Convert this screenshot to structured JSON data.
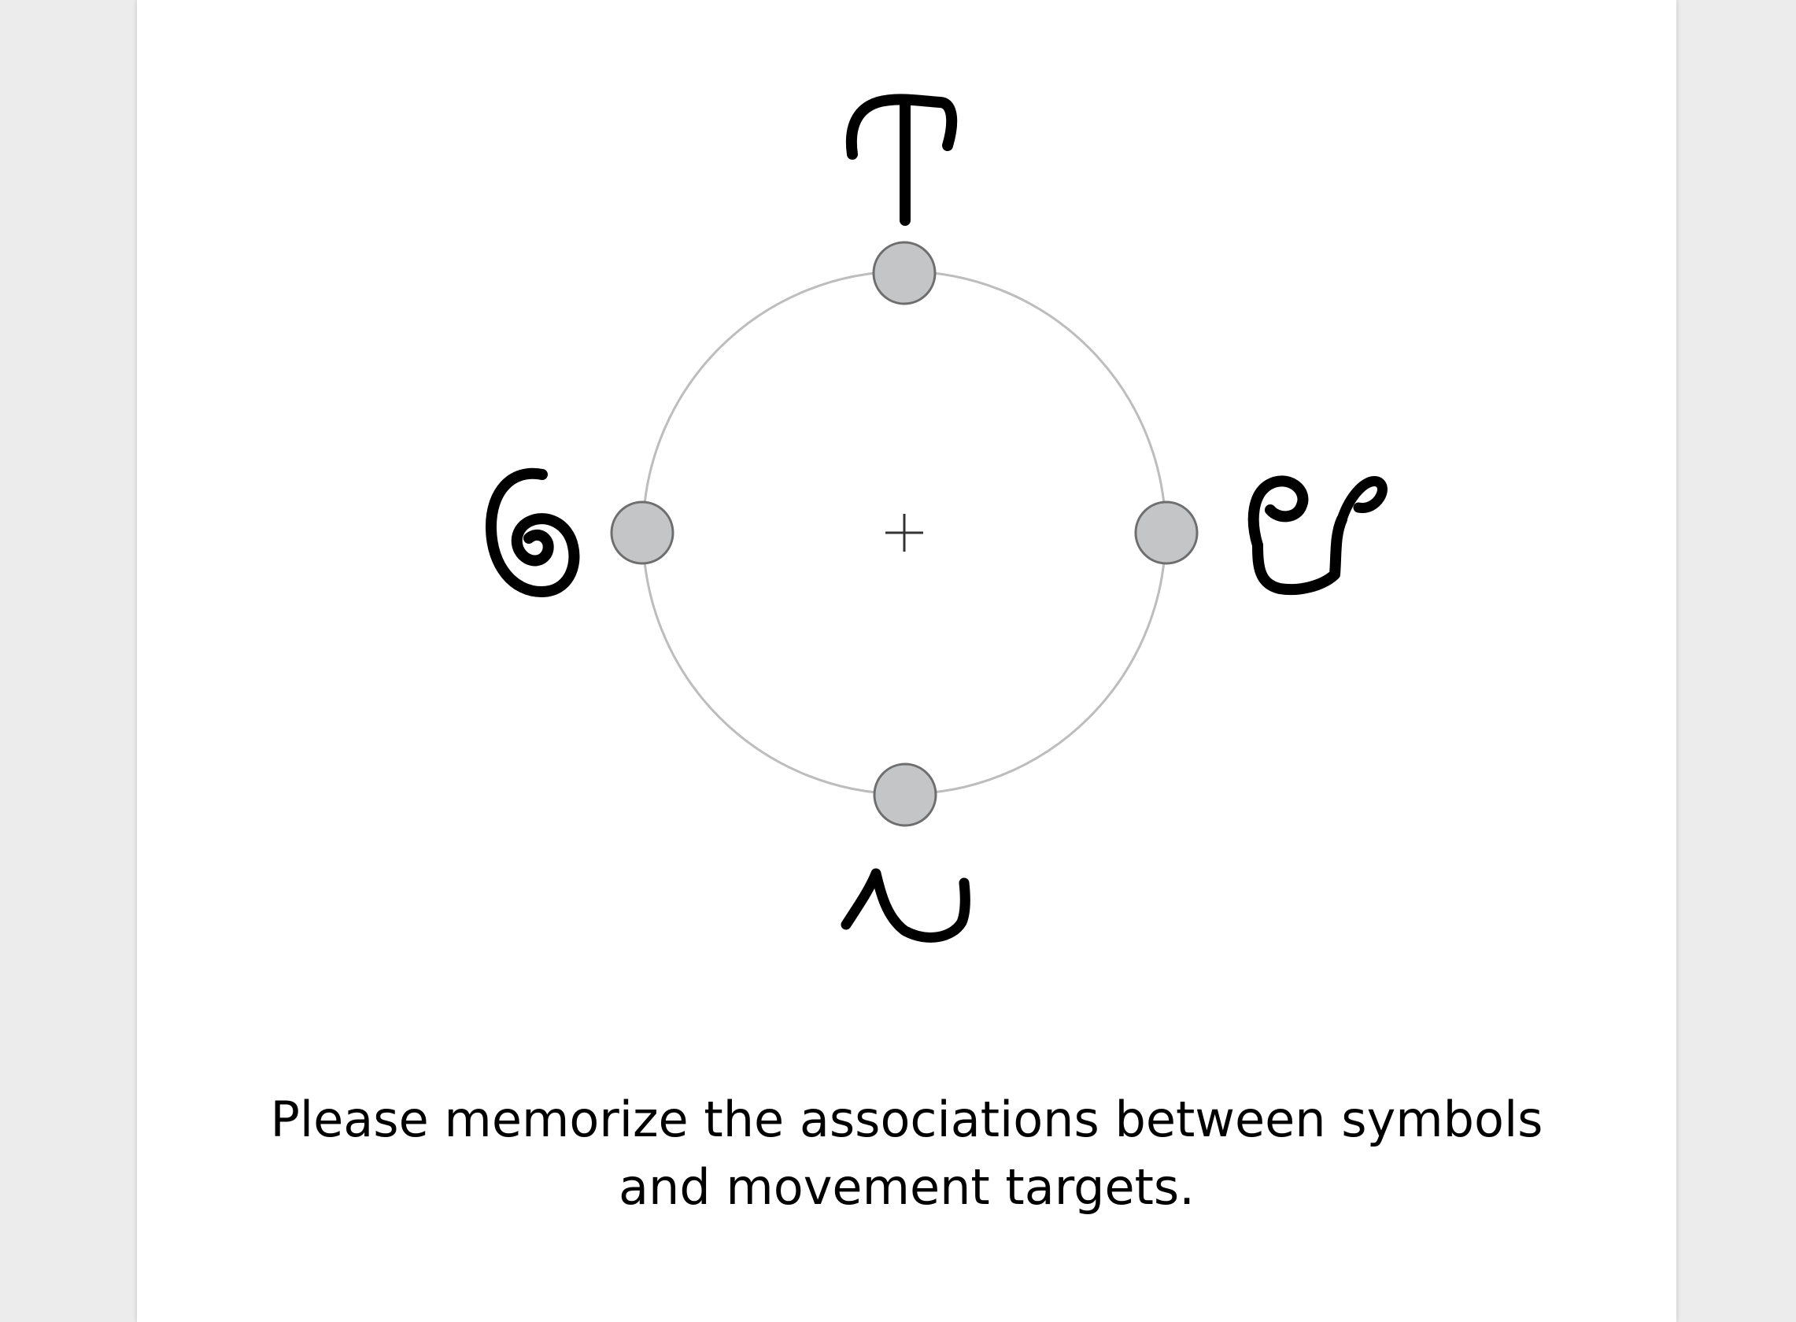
{
  "instruction": {
    "line1": "Please memorize the associations between symbols",
    "line2": "and movement targets."
  },
  "targets": [
    {
      "position": "top",
      "symbol": "anchor-glyph"
    },
    {
      "position": "right",
      "symbol": "loop-glyph"
    },
    {
      "position": "bottom",
      "symbol": "wave-glyph"
    },
    {
      "position": "left",
      "symbol": "spiral-glyph"
    }
  ],
  "colors": {
    "background": "#ececec",
    "page": "#ffffff",
    "circle": "#bdbdbd",
    "target_fill": "#c4c5c7",
    "target_stroke": "#6e6e6e",
    "symbol": "#000000"
  }
}
